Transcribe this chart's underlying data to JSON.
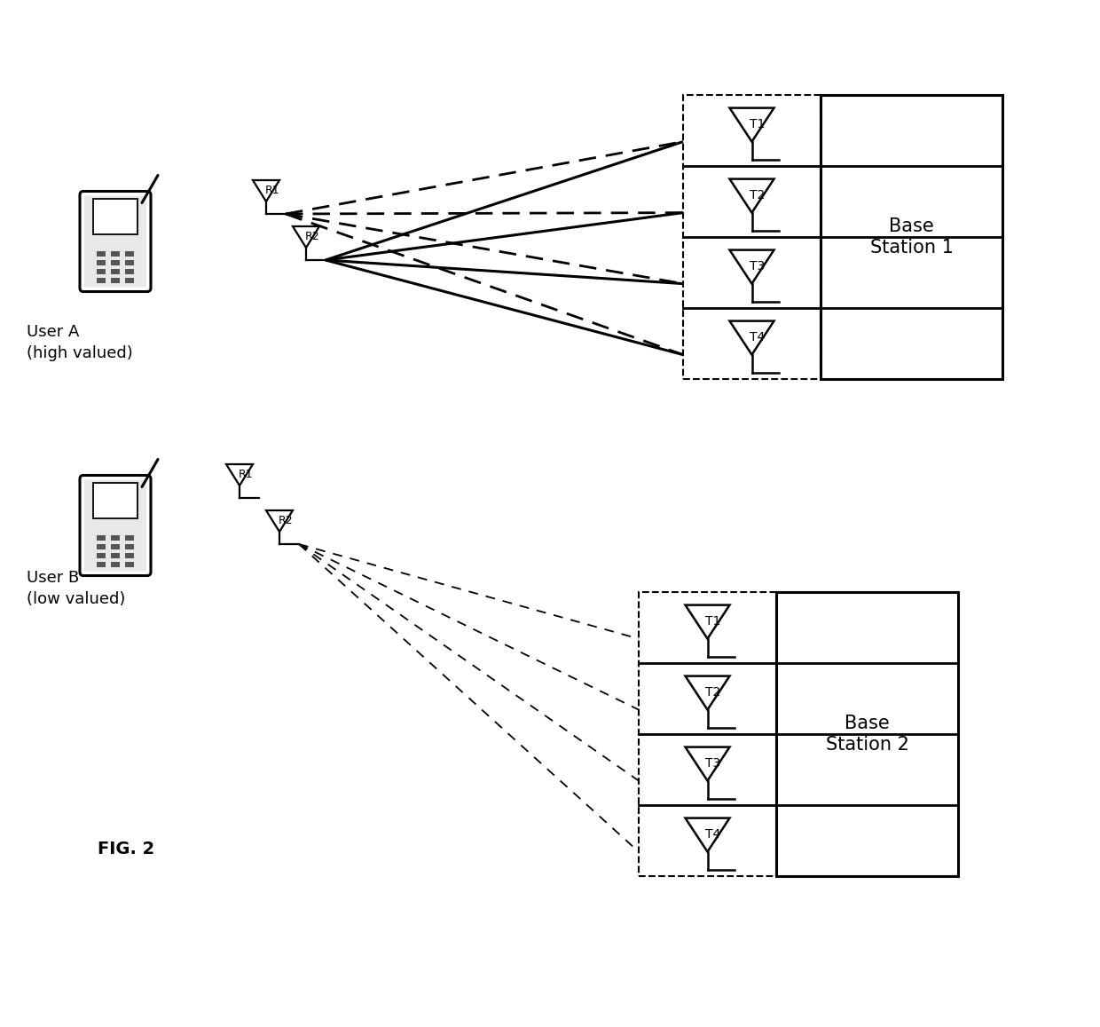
{
  "bg_color": "#ffffff",
  "figure_width": 12.4,
  "figure_height": 11.57,
  "fig2_label": "FIG. 2",
  "user_a_label": "User A\n(high valued)",
  "user_b_label": "User B\n(low valued)",
  "bs1_label": "Base\nStation 1",
  "bs2_label": "Base\nStation 2",
  "antenna_labels_bs1": [
    "T1",
    "T2",
    "T3",
    "T4"
  ],
  "antenna_labels_bs2": [
    "T1",
    "T2",
    "T3",
    "T4"
  ],
  "rx_labels_a": [
    "R1",
    "R2"
  ],
  "rx_labels_b": [
    "R1",
    "R2"
  ],
  "xlim": [
    0,
    12.4
  ],
  "ylim": [
    0,
    11.57
  ]
}
